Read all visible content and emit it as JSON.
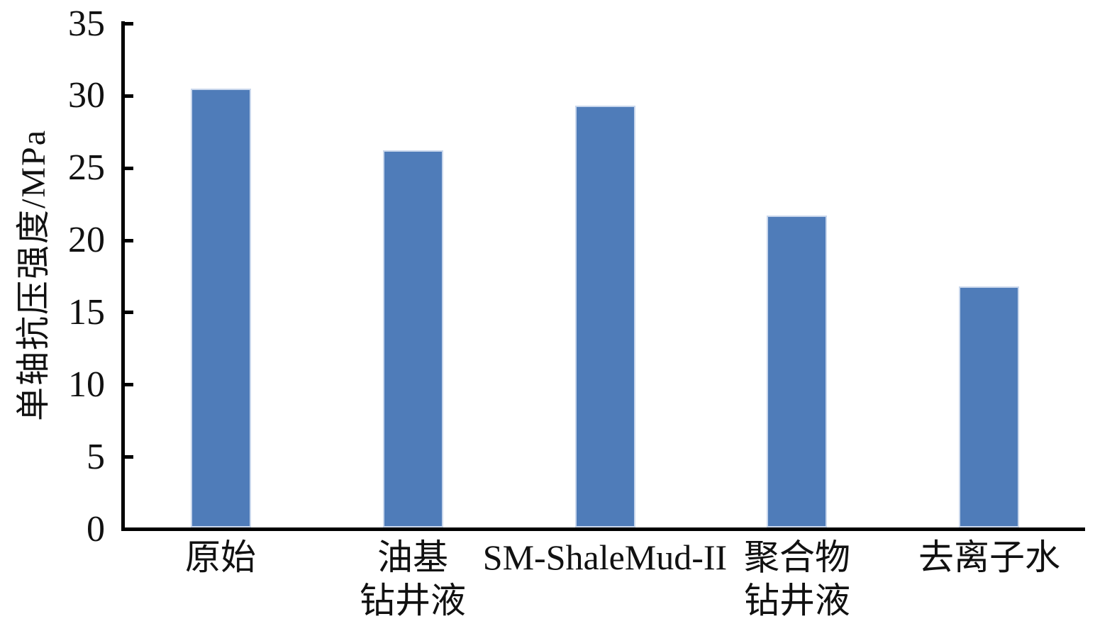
{
  "chart_data": {
    "type": "bar",
    "title": "",
    "categories": [
      "原始",
      "油基\n钻井液",
      "SM-ShaleMud-II",
      "聚合物\n钻井液",
      "去离子水"
    ],
    "values": [
      30.4,
      26.1,
      29.2,
      21.6,
      16.7
    ],
    "xlabel": "",
    "ylabel": "单轴抗压强度/MPa",
    "ylim": [
      0,
      35
    ],
    "yticks": [
      0,
      5,
      10,
      15,
      20,
      25,
      30,
      35
    ],
    "grid": false,
    "legend_position": "none",
    "bar_color": "#4F7CB9",
    "bar_border_color": "#C9D7EC",
    "axis_color": "#000000",
    "text_color": "#111111"
  }
}
